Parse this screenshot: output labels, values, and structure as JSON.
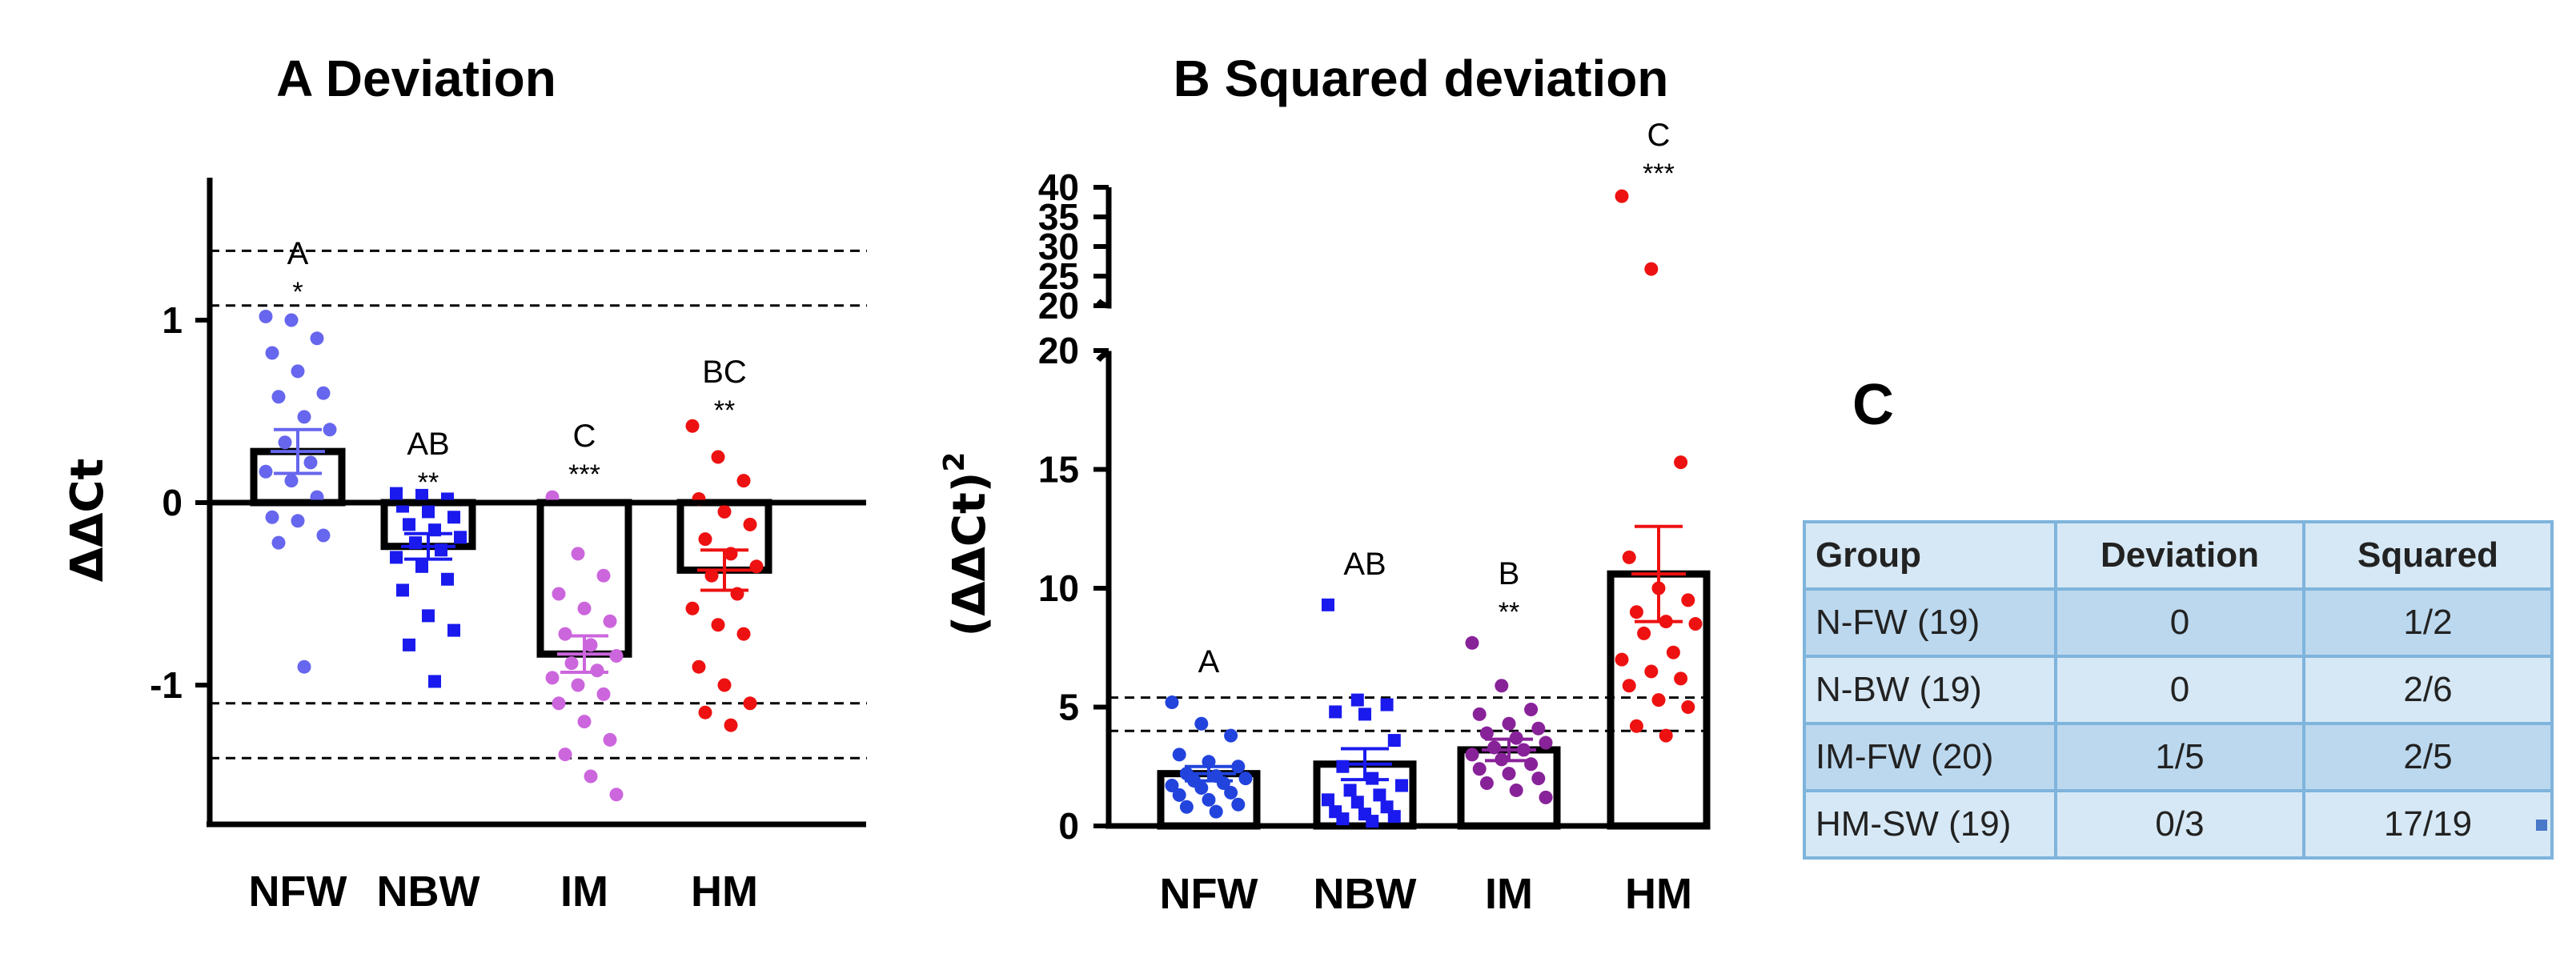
{
  "colors": {
    "nfw_a": "#6666ee",
    "nbw": "#1a1aee",
    "im_a": "#cc66dd",
    "hm": "#ee1111",
    "nfw_b": "#2244dd",
    "im_b": "#882299",
    "table_border": "#7fb4dc"
  },
  "chart_data": [
    {
      "panel": "A",
      "type": "bar",
      "title": "A  Deviation",
      "ylabel": "ΔΔCt",
      "xlabel": "",
      "ylim": [
        -1.7,
        1.7
      ],
      "yticks": [
        1,
        0,
        -1
      ],
      "ytick_labels": [
        "1",
        "0",
        "-1"
      ],
      "categories": [
        "NFW",
        "NBW",
        "IM",
        "HM"
      ],
      "means": [
        0.28,
        -0.24,
        -0.83,
        -0.37
      ],
      "sem": [
        0.12,
        0.07,
        0.1,
        0.11
      ],
      "reference_lines": [
        1.38,
        1.08,
        -1.1,
        -1.4
      ],
      "letters": [
        "A",
        "AB",
        "C",
        "BC"
      ],
      "stars": [
        "*",
        "**",
        "***",
        "**"
      ],
      "points": [
        [
          1.02,
          1.0,
          0.9,
          0.82,
          0.72,
          0.6,
          0.58,
          0.47,
          0.4,
          0.33,
          0.22,
          0.17,
          0.12,
          0.03,
          -0.08,
          -0.1,
          -0.18,
          -0.22,
          -0.9
        ],
        [
          0.05,
          0.04,
          0.02,
          -0.02,
          -0.05,
          -0.08,
          -0.12,
          -0.15,
          -0.19,
          -0.22,
          -0.26,
          -0.3,
          -0.35,
          -0.42,
          -0.48,
          -0.62,
          -0.7,
          -0.78,
          -0.98
        ],
        [
          0.03,
          -0.28,
          -0.4,
          -0.5,
          -0.58,
          -0.65,
          -0.72,
          -0.78,
          -0.84,
          -0.88,
          -0.92,
          -0.96,
          -1.0,
          -1.05,
          -1.1,
          -1.2,
          -1.3,
          -1.38,
          -1.5,
          -1.6
        ],
        [
          0.42,
          0.25,
          0.12,
          0.02,
          -0.05,
          -0.12,
          -0.2,
          -0.28,
          -0.35,
          -0.4,
          -0.5,
          -0.58,
          -0.67,
          -0.72,
          -0.9,
          -1.0,
          -1.1,
          -1.15,
          -1.22
        ]
      ]
    },
    {
      "panel": "B",
      "type": "bar",
      "title": "B Squared deviation",
      "ylabel": "(ΔΔCt)",
      "ylabel_superscript": "2",
      "xlabel": "",
      "ylim_lower": [
        0,
        20
      ],
      "ylim_upper": [
        20,
        40
      ],
      "yticks_lower": [
        "0",
        "5",
        "10",
        "15",
        "20"
      ],
      "yticks_upper": [
        "20",
        "25",
        "30",
        "35",
        "40"
      ],
      "categories": [
        "NFW",
        "NBW",
        "IM",
        "HM"
      ],
      "means": [
        2.2,
        2.6,
        3.2,
        10.6
      ],
      "sem": [
        0.3,
        0.65,
        0.45,
        2.0
      ],
      "reference_lines": [
        5.4,
        4.0
      ],
      "letters": [
        "A",
        "AB",
        "B",
        "C"
      ],
      "stars": [
        "",
        "",
        "**",
        "***"
      ],
      "points": [
        [
          5.2,
          4.3,
          3.8,
          3.0,
          2.7,
          2.5,
          2.2,
          2.1,
          2.0,
          1.9,
          1.8,
          1.7,
          1.6,
          1.4,
          1.3,
          1.1,
          0.9,
          0.8,
          0.6
        ],
        [
          9.3,
          5.3,
          5.1,
          4.8,
          4.7,
          3.6,
          2.5,
          2.0,
          1.7,
          1.5,
          1.3,
          1.1,
          1.0,
          0.8,
          0.6,
          0.5,
          0.4,
          0.3,
          0.2
        ],
        [
          7.7,
          5.9,
          4.9,
          4.7,
          4.3,
          4.1,
          3.9,
          3.7,
          3.5,
          3.3,
          3.2,
          3.0,
          2.8,
          2.6,
          2.4,
          2.2,
          2.0,
          1.8,
          1.5,
          1.2
        ],
        [
          38.5,
          26.2,
          15.3,
          11.3,
          10.0,
          9.5,
          9.0,
          8.6,
          8.5,
          8.1,
          7.3,
          7.0,
          6.5,
          6.2,
          5.9,
          5.3,
          5.0,
          4.2,
          3.8
        ]
      ]
    }
  ],
  "panel_c": {
    "label": "C",
    "headers": [
      "Group",
      "Deviation",
      "Squared"
    ],
    "rows": [
      [
        "N-FW (19)",
        "0",
        "1/2"
      ],
      [
        "N-BW (19)",
        "0",
        "2/6"
      ],
      [
        "IM-FW (20)",
        "1/5",
        "2/5"
      ],
      [
        "HM-SW (19)",
        "0/3",
        "17/19"
      ]
    ]
  }
}
